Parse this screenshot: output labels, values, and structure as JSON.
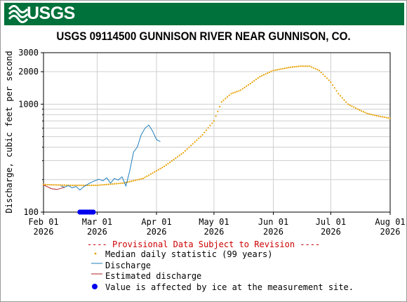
{
  "header": {
    "logo_text": "USGS",
    "brand_color": "#00713a"
  },
  "chart_data": {
    "type": "line",
    "title": "USGS 09114500 GUNNISON RIVER NEAR GUNNISON, CO.",
    "ylabel": "Discharge, cubic feet per second",
    "y_scale": "log",
    "ylim": [
      100,
      3000
    ],
    "y_ticks": [
      100,
      1000,
      2000,
      3000
    ],
    "xlim": [
      "2026-02-01",
      "2026-08-01"
    ],
    "x_ticks": [
      {
        "date": "2026-02-01",
        "line1": "Feb 01",
        "line2": "2026"
      },
      {
        "date": "2026-03-01",
        "line1": "Mar 01",
        "line2": "2026"
      },
      {
        "date": "2026-04-01",
        "line1": "Apr 01",
        "line2": "2026"
      },
      {
        "date": "2026-05-01",
        "line1": "May 01",
        "line2": "2026"
      },
      {
        "date": "2026-06-01",
        "line1": "Jun 01",
        "line2": "2026"
      },
      {
        "date": "2026-07-01",
        "line1": "Jul 01",
        "line2": "2026"
      },
      {
        "date": "2026-08-01",
        "line1": "Aug 01",
        "line2": "2026"
      }
    ],
    "grid": true,
    "series": [
      {
        "name": "Median daily statistic (99 years)",
        "style": "dots",
        "color": "#e8a000",
        "points": [
          [
            "2026-02-01",
            180
          ],
          [
            "2026-02-15",
            177
          ],
          [
            "2026-03-01",
            177
          ],
          [
            "2026-03-15",
            186
          ],
          [
            "2026-03-25",
            205
          ],
          [
            "2026-04-05",
            265
          ],
          [
            "2026-04-15",
            355
          ],
          [
            "2026-04-25",
            520
          ],
          [
            "2026-05-01",
            700
          ],
          [
            "2026-05-05",
            1050
          ],
          [
            "2026-05-10",
            1250
          ],
          [
            "2026-05-15",
            1350
          ],
          [
            "2026-05-20",
            1550
          ],
          [
            "2026-05-25",
            1800
          ],
          [
            "2026-06-01",
            2050
          ],
          [
            "2026-06-10",
            2200
          ],
          [
            "2026-06-15",
            2250
          ],
          [
            "2026-06-20",
            2250
          ],
          [
            "2026-06-25",
            2050
          ],
          [
            "2026-07-01",
            1600
          ],
          [
            "2026-07-05",
            1250
          ],
          [
            "2026-07-10",
            1000
          ],
          [
            "2026-07-15",
            900
          ],
          [
            "2026-07-20",
            820
          ],
          [
            "2026-07-25",
            780
          ],
          [
            "2026-08-01",
            740
          ]
        ]
      },
      {
        "name": "Discharge",
        "style": "line",
        "color": "#1f7fbf",
        "points": [
          [
            "2026-02-10",
            175
          ],
          [
            "2026-02-12",
            170
          ],
          [
            "2026-02-14",
            176
          ],
          [
            "2026-02-16",
            168
          ],
          [
            "2026-02-18",
            173
          ],
          [
            "2026-02-20",
            160
          ],
          [
            "2026-02-22",
            172
          ],
          [
            "2026-02-25",
            185
          ],
          [
            "2026-02-28",
            196
          ],
          [
            "2026-03-02",
            202
          ],
          [
            "2026-03-04",
            195
          ],
          [
            "2026-03-06",
            208
          ],
          [
            "2026-03-08",
            185
          ],
          [
            "2026-03-10",
            205
          ],
          [
            "2026-03-12",
            198
          ],
          [
            "2026-03-14",
            212
          ],
          [
            "2026-03-16",
            175
          ],
          [
            "2026-03-18",
            240
          ],
          [
            "2026-03-20",
            360
          ],
          [
            "2026-03-22",
            400
          ],
          [
            "2026-03-24",
            520
          ],
          [
            "2026-03-26",
            600
          ],
          [
            "2026-03-28",
            640
          ],
          [
            "2026-03-30",
            560
          ],
          [
            "2026-04-01",
            470
          ],
          [
            "2026-04-03",
            450
          ]
        ]
      },
      {
        "name": "Estimated discharge",
        "style": "line",
        "color": "#b22222",
        "points": [
          [
            "2026-02-01",
            178
          ],
          [
            "2026-02-03",
            172
          ],
          [
            "2026-02-05",
            165
          ],
          [
            "2026-02-08",
            162
          ],
          [
            "2026-02-10",
            166
          ],
          [
            "2026-02-12",
            170
          ]
        ]
      }
    ],
    "ice": {
      "name": "Value is affected by ice at the measurement site.",
      "color": "#0000ee",
      "range": [
        "2026-02-20",
        "2026-02-27"
      ],
      "y": 100
    },
    "annotation": "---- Provisional Data Subject to Revision ----"
  }
}
